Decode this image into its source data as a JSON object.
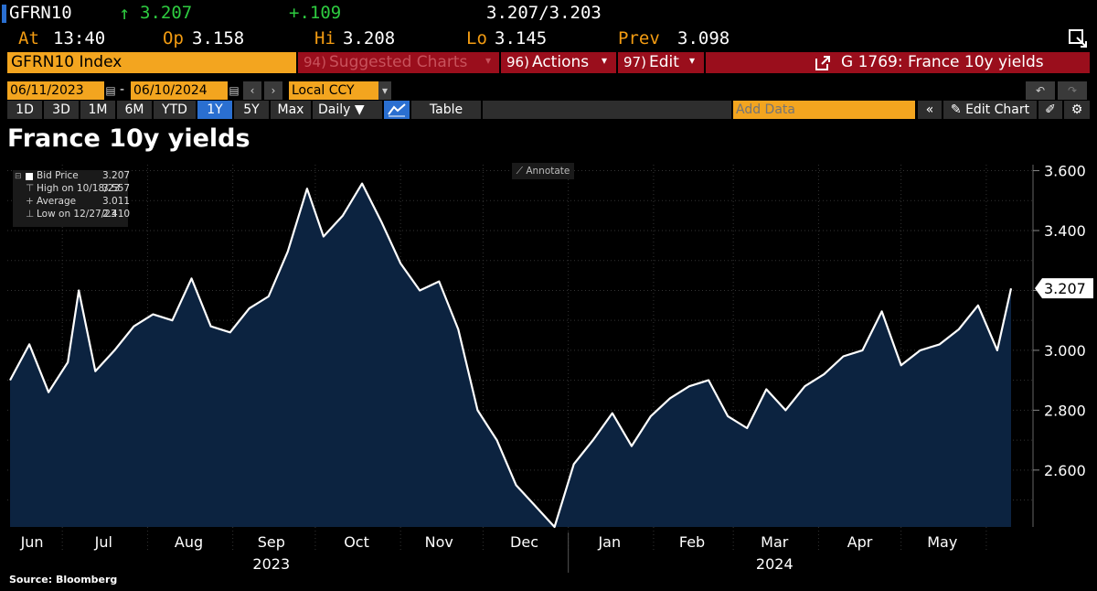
{
  "header": {
    "ticker": "GFRN10",
    "last_arrow": "↑",
    "last": "3.207",
    "change": "+.109",
    "bid_ask": "3.207/3.203",
    "at_label": "At",
    "at_value": "13:40",
    "open_label": "Op",
    "open_value": "3.158",
    "high_label": "Hi",
    "high_value": "3.208",
    "low_label": "Lo",
    "low_value": "3.145",
    "prev_label": "Prev",
    "prev_value": "3.098"
  },
  "toolbar": {
    "security": "GFRN10 Index",
    "suggested_num": "94)",
    "suggested": "Suggested Charts",
    "actions_num": "96)",
    "actions": "Actions",
    "edit_num": "97)",
    "edit": "Edit",
    "function_title": "G 1769: France 10y yields"
  },
  "controls": {
    "start_date": "06/11/2023",
    "dash": "-",
    "end_date": "06/10/2024",
    "currency": "Local CCY",
    "ranges": [
      "1D",
      "3D",
      "1M",
      "6M",
      "YTD",
      "1Y",
      "5Y",
      "Max"
    ],
    "selected_range": "1Y",
    "frequency": "Daily",
    "table_label": "Table",
    "add_data_placeholder": "Add Data",
    "edit_chart": "Edit Chart"
  },
  "legend": {
    "bid_label": "Bid Price",
    "bid_value": "3.207",
    "high_label": "High on 10/18/23",
    "high_value": "3.557",
    "avg_label": "Average",
    "avg_value": "3.011",
    "low_label": "Low on 12/27/23",
    "low_value": "2.410"
  },
  "annotate_label": "Annotate",
  "source": "Source: Bloomberg",
  "colors": {
    "background": "#000000",
    "line": "#ffffff",
    "area": "#0c2340",
    "amber": "#f3a51f",
    "red_bar": "#9a0e1c",
    "green": "#2ecc40",
    "selected": "#2a6fd1"
  },
  "chart_data": {
    "type": "area",
    "title": "France 10y yields",
    "series": [
      {
        "name": "Bid Price",
        "x": [
          "2023-06-12",
          "2023-06-19",
          "2023-06-26",
          "2023-07-03",
          "2023-07-07",
          "2023-07-13",
          "2023-07-20",
          "2023-07-27",
          "2023-08-03",
          "2023-08-10",
          "2023-08-17",
          "2023-08-24",
          "2023-08-31",
          "2023-09-07",
          "2023-09-14",
          "2023-09-21",
          "2023-09-28",
          "2023-10-04",
          "2023-10-11",
          "2023-10-18",
          "2023-10-25",
          "2023-11-01",
          "2023-11-08",
          "2023-11-15",
          "2023-11-22",
          "2023-11-29",
          "2023-12-06",
          "2023-12-13",
          "2023-12-20",
          "2023-12-27",
          "2024-01-03",
          "2024-01-10",
          "2024-01-17",
          "2024-01-24",
          "2024-01-31",
          "2024-02-07",
          "2024-02-14",
          "2024-02-21",
          "2024-02-28",
          "2024-03-06",
          "2024-03-13",
          "2024-03-20",
          "2024-03-27",
          "2024-04-03",
          "2024-04-10",
          "2024-04-17",
          "2024-04-24",
          "2024-05-01",
          "2024-05-08",
          "2024-05-15",
          "2024-05-22",
          "2024-05-29",
          "2024-06-05",
          "2024-06-10"
        ],
        "values": [
          2.9,
          3.02,
          2.86,
          2.96,
          3.2,
          2.93,
          3.0,
          3.08,
          3.12,
          3.1,
          3.24,
          3.08,
          3.06,
          3.14,
          3.18,
          3.33,
          3.54,
          3.38,
          3.45,
          3.557,
          3.43,
          3.29,
          3.2,
          3.23,
          3.07,
          2.8,
          2.7,
          2.55,
          2.48,
          2.41,
          2.62,
          2.7,
          2.79,
          2.68,
          2.78,
          2.84,
          2.88,
          2.9,
          2.78,
          2.74,
          2.87,
          2.8,
          2.88,
          2.92,
          2.98,
          3.0,
          3.13,
          2.95,
          3.0,
          3.02,
          3.07,
          3.15,
          3.0,
          3.207
        ]
      }
    ],
    "xlabel": "",
    "ylabel": "",
    "ylim": [
      2.41,
      3.62
    ],
    "y_ticks": [
      "2.600",
      "2.800",
      "3.000",
      "3.200",
      "3.400",
      "3.600"
    ],
    "x_month_labels": [
      "Jun",
      "Jul",
      "Aug",
      "Sep",
      "Oct",
      "Nov",
      "Dec",
      "Jan",
      "Feb",
      "Mar",
      "Apr",
      "May"
    ],
    "x_year_labels": [
      "2023",
      "2024"
    ],
    "last_value_label": "3.207",
    "grid": true
  }
}
